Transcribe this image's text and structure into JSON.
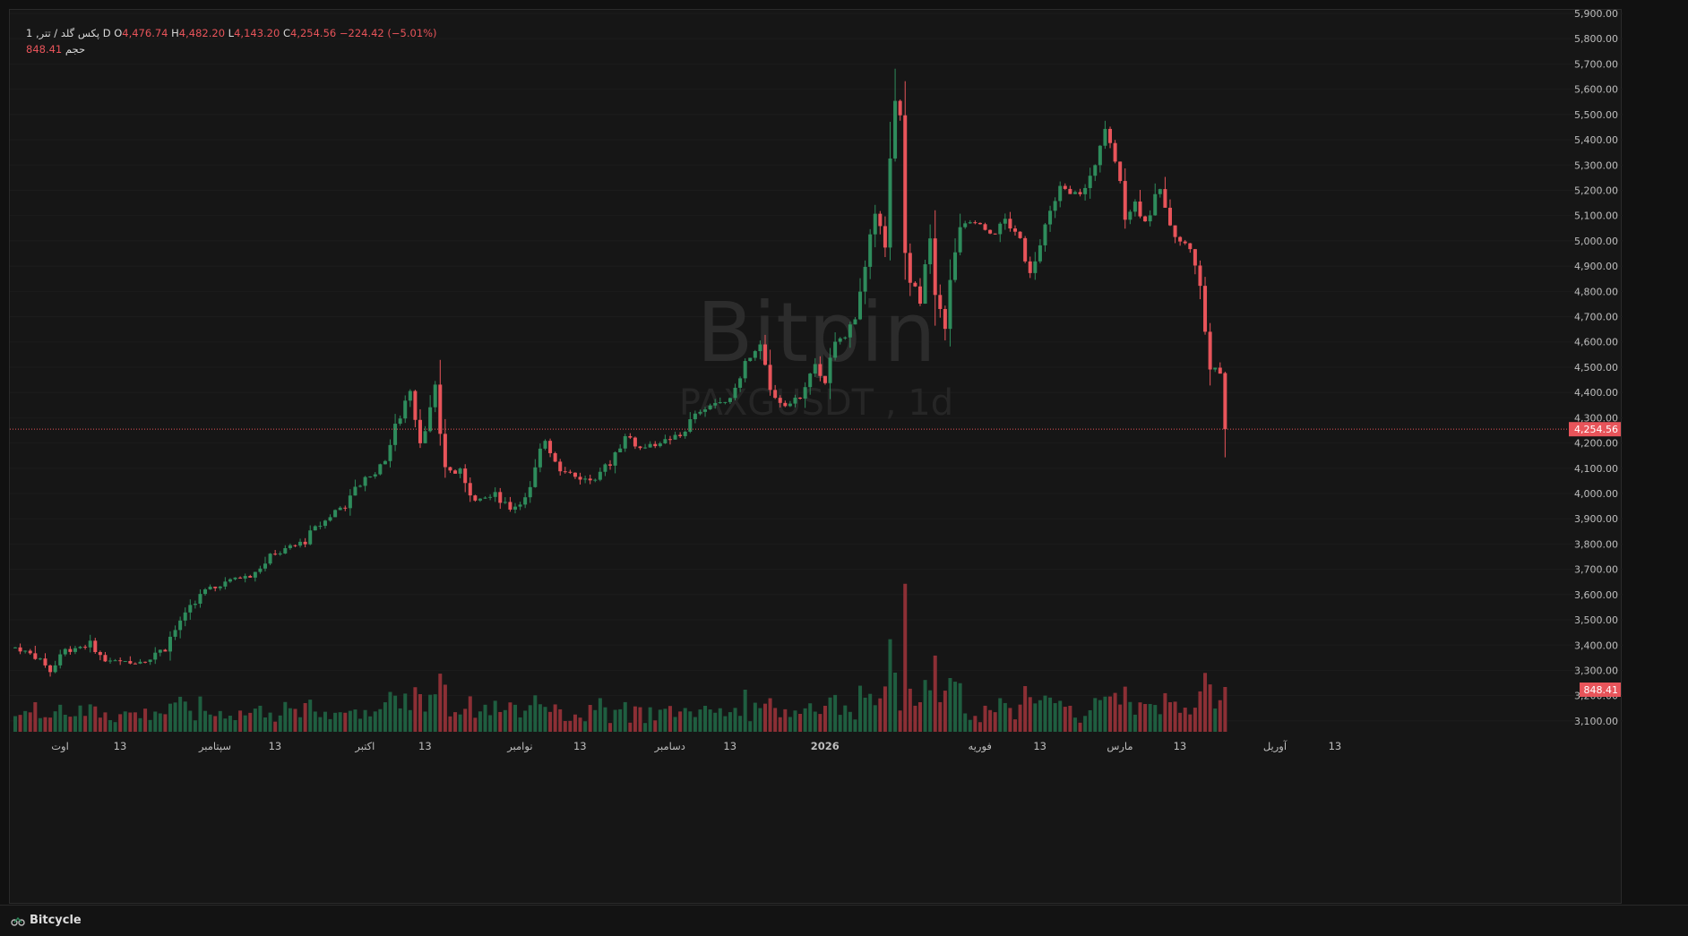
{
  "legend": {
    "symbol": "پکس گلد / تتر, 1",
    "interval": "D",
    "o_label": "O",
    "o": "4,476.74",
    "h_label": "H",
    "h": "4,482.20",
    "l_label": "L",
    "l": "4,143.20",
    "c_label": "C",
    "c": "4,254.56",
    "change": "−224.42 (−5.01%)",
    "volume_label": "حجم",
    "volume": "848.41"
  },
  "watermark": {
    "brand": "Bitpin",
    "pair": "PAXGUSDT , 1d"
  },
  "footer": {
    "brand": "Bitcycle"
  },
  "colors": {
    "up": "#2e8c5c",
    "down": "#e8545a",
    "up_volume": "#1f5e40",
    "down_volume": "#8c2f35",
    "last_price": "#e8545a"
  },
  "chart_data": {
    "type": "candlestick",
    "y_axis": {
      "min": 3050,
      "max": 5900,
      "position": "right",
      "ticks": [
        "5,900.00",
        "5,800.00",
        "5,700.00",
        "5,600.00",
        "5,500.00",
        "5,400.00",
        "5,300.00",
        "5,200.00",
        "5,100.00",
        "5,000.00",
        "4,900.00",
        "4,800.00",
        "4,700.00",
        "4,600.00",
        "4,500.00",
        "4,400.00",
        "4,300.00",
        "4,200.00",
        "4,100.00",
        "4,000.00",
        "3,900.00",
        "3,800.00",
        "3,700.00",
        "3,600.00",
        "3,500.00",
        "3,400.00",
        "3,300.00",
        "3,200.00",
        "3,100.00"
      ],
      "tick_values": [
        5900,
        5800,
        5700,
        5600,
        5500,
        5400,
        5300,
        5200,
        5100,
        5000,
        4900,
        4800,
        4700,
        4600,
        4500,
        4400,
        4300,
        4200,
        4100,
        4000,
        3900,
        3800,
        3700,
        3600,
        3500,
        3400,
        3300,
        3200,
        3100
      ]
    },
    "x_axis": {
      "ticks": [
        {
          "label": "اوت",
          "day": 0
        },
        {
          "label": "13",
          "day": 12
        },
        {
          "label": "سپتامبر",
          "day": 31
        },
        {
          "label": "13",
          "day": 43
        },
        {
          "label": "اکتبر",
          "day": 61
        },
        {
          "label": "13",
          "day": 73
        },
        {
          "label": "نوامبر",
          "day": 92
        },
        {
          "label": "13",
          "day": 104
        },
        {
          "label": "دسامبر",
          "day": 122
        },
        {
          "label": "13",
          "day": 134
        },
        {
          "label": "2026",
          "day": 153
        },
        {
          "label": "فوریه",
          "day": 184
        },
        {
          "label": "13",
          "day": 196
        },
        {
          "label": "مارس",
          "day": 212
        },
        {
          "label": "13",
          "day": 224
        },
        {
          "label": "آوریل",
          "day": 243
        },
        {
          "label": "13",
          "day": 255
        }
      ]
    },
    "last_price": {
      "value": 4254.56,
      "label": "4,254.56"
    },
    "last_volume": {
      "label": "848.41"
    },
    "anchors": [
      {
        "d": 0,
        "c": 3390
      },
      {
        "d": 4,
        "c": 3360
      },
      {
        "d": 7,
        "c": 3300
      },
      {
        "d": 10,
        "c": 3380
      },
      {
        "d": 15,
        "c": 3400
      },
      {
        "d": 18,
        "c": 3340
      },
      {
        "d": 23,
        "c": 3330
      },
      {
        "d": 27,
        "c": 3350
      },
      {
        "d": 30,
        "c": 3400
      },
      {
        "d": 34,
        "c": 3520
      },
      {
        "d": 37,
        "c": 3600
      },
      {
        "d": 42,
        "c": 3650
      },
      {
        "d": 47,
        "c": 3680
      },
      {
        "d": 52,
        "c": 3760
      },
      {
        "d": 57,
        "c": 3800
      },
      {
        "d": 62,
        "c": 3900
      },
      {
        "d": 66,
        "c": 3960
      },
      {
        "d": 70,
        "c": 4060
      },
      {
        "d": 73,
        "c": 4100
      },
      {
        "d": 76,
        "c": 4250
      },
      {
        "d": 79,
        "c": 4420
      },
      {
        "d": 81,
        "c": 4220
      },
      {
        "d": 84,
        "c": 4380
      },
      {
        "d": 86,
        "c": 4100
      },
      {
        "d": 89,
        "c": 4080
      },
      {
        "d": 92,
        "c": 3980
      },
      {
        "d": 96,
        "c": 4000
      },
      {
        "d": 99,
        "c": 3940
      },
      {
        "d": 103,
        "c": 4000
      },
      {
        "d": 106,
        "c": 4220
      },
      {
        "d": 109,
        "c": 4100
      },
      {
        "d": 113,
        "c": 4060
      },
      {
        "d": 116,
        "c": 4050
      },
      {
        "d": 119,
        "c": 4130
      },
      {
        "d": 122,
        "c": 4230
      },
      {
        "d": 125,
        "c": 4180
      },
      {
        "d": 129,
        "c": 4200
      },
      {
        "d": 133,
        "c": 4230
      },
      {
        "d": 136,
        "c": 4310
      },
      {
        "d": 140,
        "c": 4360
      },
      {
        "d": 143,
        "c": 4380
      },
      {
        "d": 146,
        "c": 4520
      },
      {
        "d": 149,
        "c": 4580
      },
      {
        "d": 151,
        "c": 4400
      },
      {
        "d": 154,
        "c": 4350
      },
      {
        "d": 157,
        "c": 4380
      },
      {
        "d": 160,
        "c": 4500
      },
      {
        "d": 162,
        "c": 4450
      },
      {
        "d": 164,
        "c": 4590
      },
      {
        "d": 166,
        "c": 4620
      },
      {
        "d": 168,
        "c": 4720
      },
      {
        "d": 170,
        "c": 4890
      },
      {
        "d": 172,
        "c": 5100
      },
      {
        "d": 174,
        "c": 5050
      },
      {
        "d": 176,
        "c": 5540
      },
      {
        "d": 177,
        "c": 5450
      },
      {
        "d": 178,
        "c": 4950
      },
      {
        "d": 179,
        "c": 4850
      },
      {
        "d": 181,
        "c": 4750
      },
      {
        "d": 183,
        "c": 5000
      },
      {
        "d": 184,
        "c": 4780
      },
      {
        "d": 186,
        "c": 4700
      },
      {
        "d": 189,
        "c": 5050
      },
      {
        "d": 192,
        "c": 5080
      },
      {
        "d": 195,
        "c": 5020
      },
      {
        "d": 198,
        "c": 5080
      },
      {
        "d": 201,
        "c": 5000
      },
      {
        "d": 203,
        "c": 4880
      },
      {
        "d": 205,
        "c": 5000
      },
      {
        "d": 207,
        "c": 5100
      },
      {
        "d": 209,
        "c": 5210
      },
      {
        "d": 211,
        "c": 5180
      },
      {
        "d": 214,
        "c": 5200
      },
      {
        "d": 216,
        "c": 5310
      },
      {
        "d": 218,
        "c": 5430
      },
      {
        "d": 220,
        "c": 5320
      },
      {
        "d": 222,
        "c": 5100
      },
      {
        "d": 224,
        "c": 5150
      },
      {
        "d": 226,
        "c": 5080
      },
      {
        "d": 229,
        "c": 5200
      },
      {
        "d": 231,
        "c": 5060
      },
      {
        "d": 233,
        "c": 5000
      },
      {
        "d": 235,
        "c": 4980
      },
      {
        "d": 237,
        "c": 4800
      },
      {
        "d": 239,
        "c": 4500
      },
      {
        "d": 241,
        "c": 4480
      },
      {
        "d": 242,
        "c": 4254.56
      }
    ]
  }
}
